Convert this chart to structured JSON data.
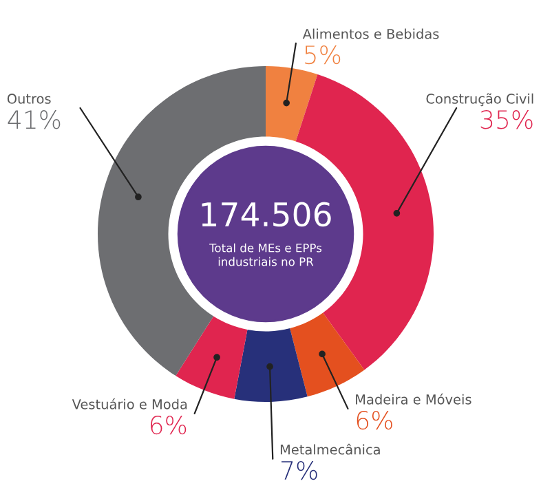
{
  "chart_data": {
    "type": "donut",
    "categories": [
      "Alimentos e Bebidas",
      "Construção Civil",
      "Madeira e Móveis",
      "Metalmecânica",
      "Vestuário e Moda",
      "Outros"
    ],
    "values": [
      5,
      35,
      6,
      7,
      6,
      41
    ],
    "value_labels": [
      "5%",
      "35%",
      "6%",
      "7%",
      "6%",
      "41%"
    ],
    "colors": [
      "#f08140",
      "#e0254f",
      "#e4501f",
      "#27307a",
      "#e0254f",
      "#6d6e71"
    ],
    "annotations": [
      "174.506",
      "Total de MEs e EPPs\nindustriais no PR"
    ],
    "legend": false
  }
}
